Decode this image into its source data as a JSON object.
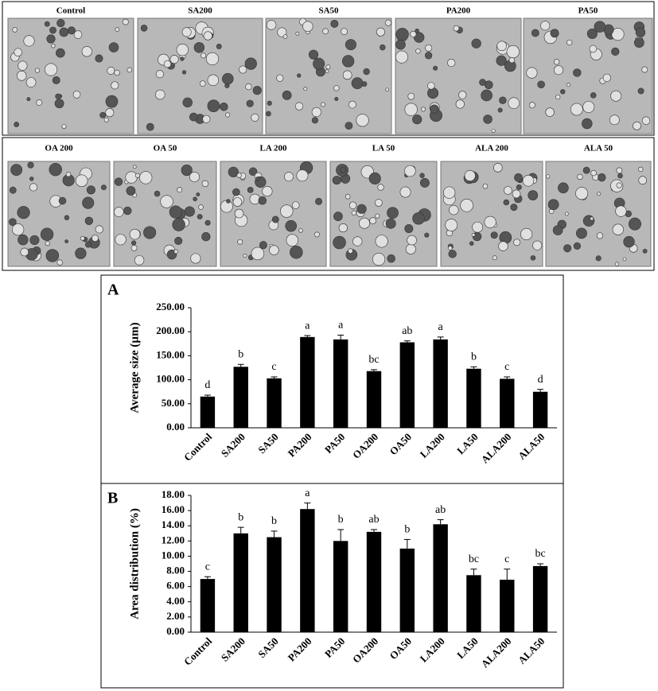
{
  "panels": {
    "row1": [
      "Control",
      "SA200",
      "SA50",
      "PA200",
      "PA50"
    ],
    "row2": [
      "OA 200",
      "OA 50",
      "LA 200",
      "LA 50",
      "ALA 200",
      "ALA 50"
    ]
  },
  "chart_data": [
    {
      "type": "bar",
      "panel_label": "A",
      "y_label": "Average size (µm)",
      "categories": [
        "Control",
        "SA200",
        "SA50",
        "PA200",
        "PA50",
        "OA200",
        "OA50",
        "LA200",
        "LA50",
        "ALA200",
        "ALA50"
      ],
      "values": [
        65,
        127,
        103,
        189,
        184,
        118,
        178,
        184,
        123,
        102,
        75
      ],
      "errors": [
        3,
        5,
        3,
        3,
        9,
        3,
        3,
        5,
        4,
        4,
        5
      ],
      "letters": [
        "d",
        "b",
        "c",
        "a",
        "a",
        "bc",
        "ab",
        "a",
        "b",
        "c",
        "d"
      ],
      "color": "#000000",
      "ylim": [
        0,
        250
      ],
      "yticks": [
        {
          "value": 0,
          "label": "0.00"
        },
        {
          "value": 50,
          "label": "50.00"
        },
        {
          "value": 100,
          "label": "100.00"
        },
        {
          "value": 150,
          "label": "150.00"
        },
        {
          "value": 200,
          "label": "200.00"
        },
        {
          "value": 250,
          "label": "250.00"
        }
      ]
    },
    {
      "type": "bar",
      "panel_label": "B",
      "y_label": "Area distribution (%)",
      "categories": [
        "Control",
        "SA200",
        "SA50",
        "PA200",
        "PA50",
        "OA200",
        "OA50",
        "LA200",
        "LA50",
        "ALA200",
        "ALA50"
      ],
      "values": [
        7.0,
        13.0,
        12.5,
        16.2,
        12.0,
        13.2,
        11.0,
        14.2,
        7.5,
        6.9,
        8.7
      ],
      "errors": [
        0.3,
        0.8,
        0.8,
        0.8,
        1.5,
        0.3,
        1.2,
        0.6,
        0.8,
        1.4,
        0.3
      ],
      "letters": [
        "c",
        "b",
        "b",
        "a",
        "b",
        "ab",
        "b",
        "ab",
        "bc",
        "c",
        "bc"
      ],
      "color": "#000000",
      "ylim": [
        0,
        18
      ],
      "yticks": [
        {
          "value": 0,
          "label": "0.00"
        },
        {
          "value": 2,
          "label": "2.00"
        },
        {
          "value": 4,
          "label": "4.00"
        },
        {
          "value": 6,
          "label": "6.00"
        },
        {
          "value": 8,
          "label": "8.00"
        },
        {
          "value": 10,
          "label": "10.00"
        },
        {
          "value": 12,
          "label": "12.00"
        },
        {
          "value": 14,
          "label": "14.00"
        },
        {
          "value": 16,
          "label": "16.00"
        },
        {
          "value": 18,
          "label": "18.00"
        }
      ]
    }
  ]
}
